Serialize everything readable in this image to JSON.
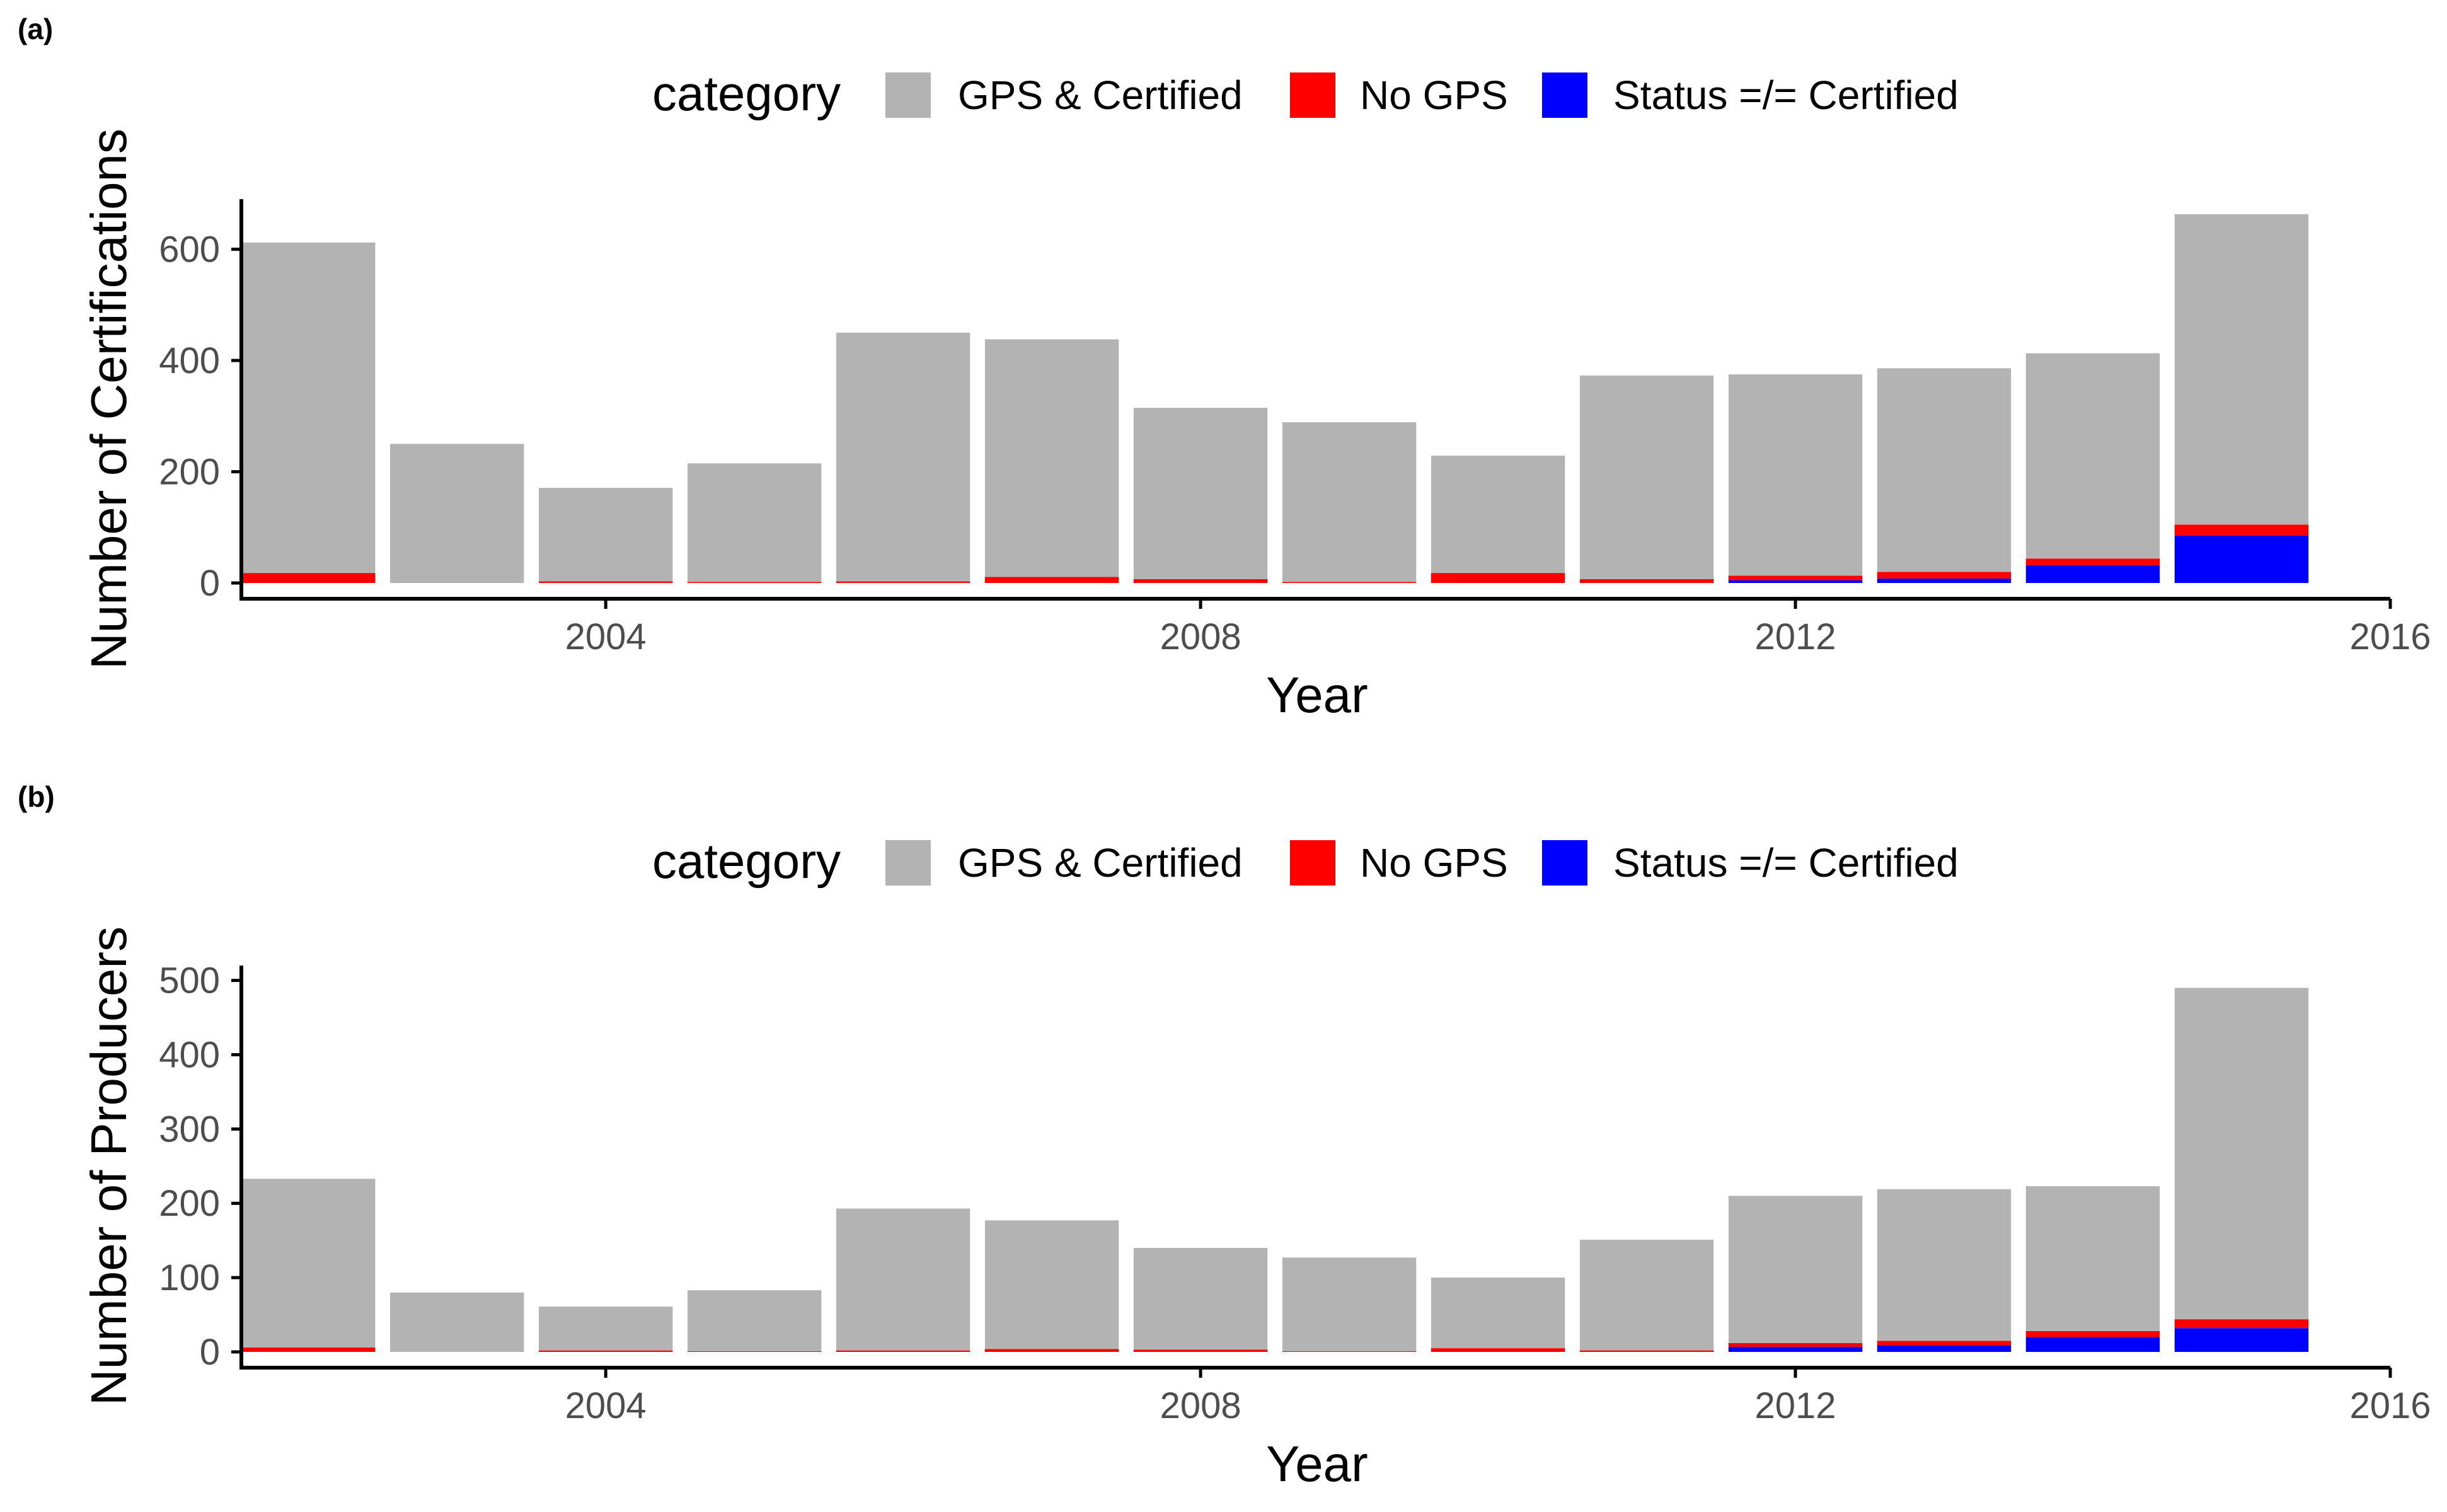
{
  "panels": [
    {
      "tag": "(a)",
      "legend": {
        "title": "category",
        "items": [
          {
            "label": "GPS & Certified",
            "color": "#b3b3b3"
          },
          {
            "label": "No GPS",
            "color": "#ff0000"
          },
          {
            "label": "Status =/= Certified",
            "color": "#0000ff"
          }
        ]
      },
      "x_axis": {
        "title": "Year",
        "ticks": [
          "2004",
          "2008",
          "2012",
          "2016"
        ]
      },
      "y_axis": {
        "title": "Number of Certifications",
        "ticks": [
          "0",
          "200",
          "400",
          "600"
        ]
      }
    },
    {
      "tag": "(b)",
      "legend": {
        "title": "category",
        "items": [
          {
            "label": "GPS & Certified",
            "color": "#b3b3b3"
          },
          {
            "label": "No GPS",
            "color": "#ff0000"
          },
          {
            "label": "Status =/= Certified",
            "color": "#0000ff"
          }
        ]
      },
      "x_axis": {
        "title": "Year",
        "ticks": [
          "2004",
          "2008",
          "2012",
          "2016"
        ]
      },
      "y_axis": {
        "title": "Number of Producers",
        "ticks": [
          "0",
          "100",
          "200",
          "300",
          "400",
          "500"
        ]
      }
    }
  ],
  "chart_data": [
    {
      "type": "bar",
      "stacked": true,
      "x": [
        2002,
        2003,
        2004,
        2005,
        2006,
        2007,
        2008,
        2009,
        2010,
        2011,
        2012,
        2013,
        2014,
        2015
      ],
      "xlim": [
        2001.55,
        2016
      ],
      "ylim": [
        0,
        690
      ],
      "xlabel": "Year",
      "ylabel": "Number of Certifications",
      "legend_title": "category",
      "legend_position": "top",
      "grid": false,
      "series": [
        {
          "name": "Status =/= Certified",
          "color": "#0000ff",
          "values": [
            0,
            0,
            0,
            0,
            0,
            0,
            0,
            0,
            0,
            0,
            5,
            8,
            32,
            85
          ]
        },
        {
          "name": "No GPS",
          "color": "#ff0000",
          "values": [
            18,
            0,
            3,
            2,
            3,
            11,
            7,
            2,
            18,
            7,
            8,
            12,
            12,
            20
          ]
        },
        {
          "name": "GPS & Certified",
          "color": "#b3b3b3",
          "values": [
            594,
            250,
            168,
            213,
            447,
            427,
            308,
            287,
            211,
            366,
            362,
            366,
            369,
            558
          ]
        }
      ]
    },
    {
      "type": "bar",
      "stacked": true,
      "x": [
        2002,
        2003,
        2004,
        2005,
        2006,
        2007,
        2008,
        2009,
        2010,
        2011,
        2012,
        2013,
        2014,
        2015
      ],
      "xlim": [
        2001.55,
        2016
      ],
      "ylim": [
        0,
        520
      ],
      "xlabel": "Year",
      "ylabel": "Number of Producers",
      "legend_title": "category",
      "legend_position": "top",
      "grid": false,
      "series": [
        {
          "name": "Status =/= Certified",
          "color": "#0000ff",
          "values": [
            0,
            0,
            0,
            0,
            0,
            0,
            0,
            0,
            0,
            0,
            7,
            9,
            20,
            32
          ]
        },
        {
          "name": "No GPS",
          "color": "#ff0000",
          "values": [
            6,
            0,
            2,
            1,
            2,
            4,
            3,
            1,
            5,
            2,
            5,
            6,
            8,
            12
          ]
        },
        {
          "name": "GPS & Certified",
          "color": "#b3b3b3",
          "values": [
            227,
            80,
            59,
            82,
            191,
            173,
            137,
            126,
            95,
            149,
            198,
            204,
            195,
            446
          ]
        }
      ]
    }
  ]
}
